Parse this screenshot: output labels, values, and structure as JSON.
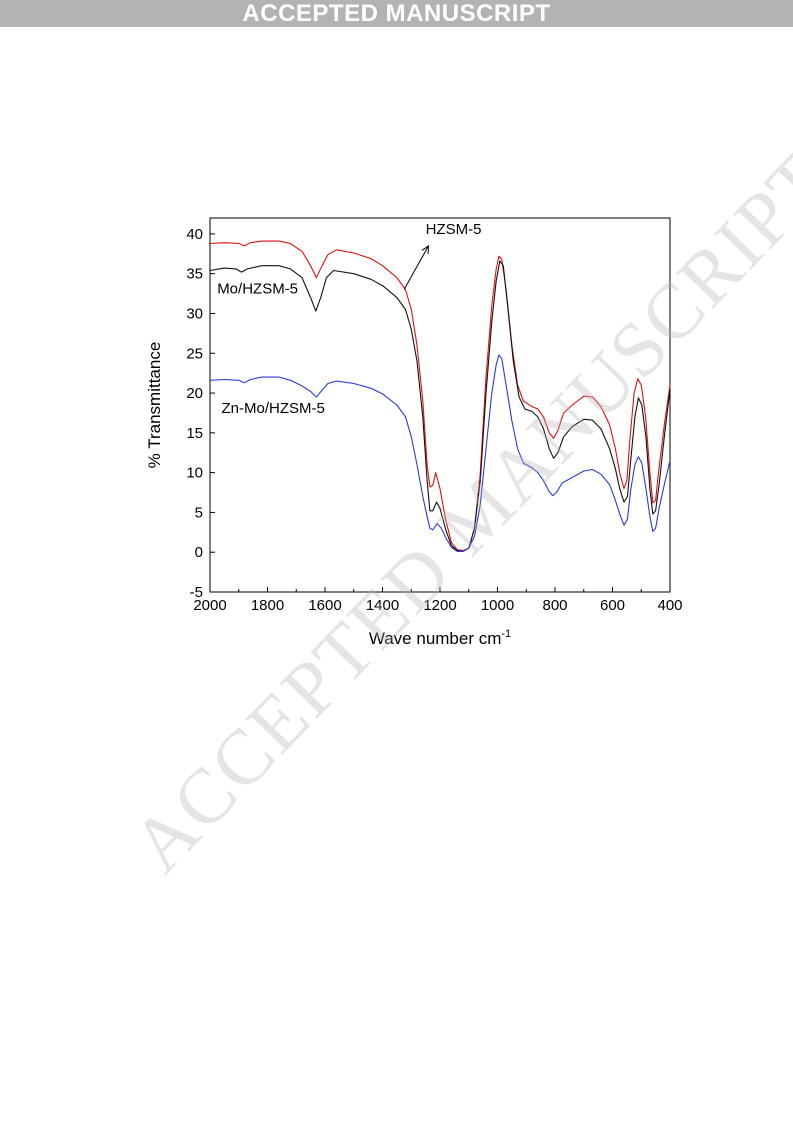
{
  "banner": {
    "text": "ACCEPTED MANUSCRIPT"
  },
  "watermark": {
    "text": "ACCEPTED MANUSCRIPT"
  },
  "chart_data": {
    "type": "line",
    "xlabel": "Wave number cm",
    "xlabel_sup": "-1",
    "ylabel": "% Transmittance",
    "xlim": [
      2000,
      400
    ],
    "ylim": [
      -5,
      42
    ],
    "x_ticks": [
      2000,
      1800,
      1600,
      1400,
      1200,
      1000,
      800,
      600,
      400
    ],
    "y_ticks": [
      -5,
      0,
      5,
      10,
      15,
      20,
      25,
      30,
      35,
      40
    ],
    "grid": false,
    "legend": "none",
    "annotations": [
      {
        "text": "HZSM-5",
        "x": 1250,
        "y": 40.0
      },
      {
        "text": "Mo/HZSM-5",
        "x": 1975,
        "y": 32.5
      },
      {
        "text": "Zn-Mo/HZSM-5",
        "x": 1960,
        "y": 17.5
      }
    ],
    "series": [
      {
        "name": "HZSM-5",
        "color": "#e01010",
        "points": [
          [
            2000,
            38.8
          ],
          [
            1950,
            38.9
          ],
          [
            1900,
            38.8
          ],
          [
            1880,
            38.5
          ],
          [
            1860,
            38.9
          ],
          [
            1820,
            39.1
          ],
          [
            1760,
            39.1
          ],
          [
            1720,
            38.8
          ],
          [
            1680,
            37.8
          ],
          [
            1650,
            36.0
          ],
          [
            1630,
            34.5
          ],
          [
            1610,
            36.0
          ],
          [
            1590,
            37.4
          ],
          [
            1560,
            38.0
          ],
          [
            1500,
            37.6
          ],
          [
            1440,
            36.9
          ],
          [
            1400,
            36.0
          ],
          [
            1350,
            34.5
          ],
          [
            1320,
            33.0
          ],
          [
            1300,
            30.5
          ],
          [
            1280,
            26.0
          ],
          [
            1260,
            19.0
          ],
          [
            1245,
            11.0
          ],
          [
            1235,
            8.2
          ],
          [
            1225,
            8.4
          ],
          [
            1215,
            10.0
          ],
          [
            1200,
            8.0
          ],
          [
            1180,
            4.0
          ],
          [
            1160,
            1.2
          ],
          [
            1140,
            0.3
          ],
          [
            1120,
            0.2
          ],
          [
            1100,
            0.5
          ],
          [
            1080,
            3.0
          ],
          [
            1060,
            10.0
          ],
          [
            1040,
            22.0
          ],
          [
            1020,
            31.0
          ],
          [
            1005,
            35.5
          ],
          [
            995,
            37.2
          ],
          [
            985,
            36.8
          ],
          [
            970,
            33.0
          ],
          [
            950,
            26.0
          ],
          [
            930,
            21.0
          ],
          [
            910,
            19.0
          ],
          [
            880,
            18.3
          ],
          [
            860,
            18.0
          ],
          [
            840,
            17.0
          ],
          [
            820,
            15.0
          ],
          [
            805,
            14.3
          ],
          [
            790,
            15.3
          ],
          [
            770,
            17.5
          ],
          [
            740,
            18.5
          ],
          [
            700,
            19.6
          ],
          [
            670,
            19.5
          ],
          [
            640,
            18.3
          ],
          [
            610,
            16.0
          ],
          [
            590,
            13.0
          ],
          [
            575,
            10.0
          ],
          [
            560,
            8.0
          ],
          [
            550,
            9.0
          ],
          [
            540,
            14.0
          ],
          [
            525,
            20.0
          ],
          [
            512,
            21.8
          ],
          [
            500,
            21.0
          ],
          [
            485,
            17.0
          ],
          [
            470,
            10.0
          ],
          [
            460,
            6.2
          ],
          [
            450,
            6.5
          ],
          [
            440,
            10.0
          ],
          [
            420,
            16.0
          ],
          [
            400,
            21.0
          ]
        ]
      },
      {
        "name": "Mo/HZSM-5",
        "color": "#111111",
        "points": [
          [
            2000,
            35.4
          ],
          [
            1950,
            35.7
          ],
          [
            1910,
            35.6
          ],
          [
            1890,
            35.2
          ],
          [
            1870,
            35.6
          ],
          [
            1820,
            36.0
          ],
          [
            1760,
            36.0
          ],
          [
            1720,
            35.6
          ],
          [
            1680,
            34.5
          ],
          [
            1650,
            32.0
          ],
          [
            1632,
            30.3
          ],
          [
            1615,
            32.0
          ],
          [
            1595,
            34.5
          ],
          [
            1570,
            35.4
          ],
          [
            1500,
            35.0
          ],
          [
            1440,
            34.3
          ],
          [
            1400,
            33.5
          ],
          [
            1350,
            32.0
          ],
          [
            1320,
            30.5
          ],
          [
            1300,
            28.0
          ],
          [
            1280,
            24.0
          ],
          [
            1260,
            17.0
          ],
          [
            1245,
            9.0
          ],
          [
            1235,
            5.2
          ],
          [
            1225,
            5.2
          ],
          [
            1212,
            6.3
          ],
          [
            1200,
            5.5
          ],
          [
            1180,
            2.8
          ],
          [
            1160,
            0.8
          ],
          [
            1140,
            0.2
          ],
          [
            1120,
            0.1
          ],
          [
            1100,
            0.5
          ],
          [
            1080,
            3.0
          ],
          [
            1060,
            9.0
          ],
          [
            1040,
            20.0
          ],
          [
            1020,
            29.0
          ],
          [
            1005,
            34.0
          ],
          [
            992,
            36.6
          ],
          [
            980,
            36.0
          ],
          [
            965,
            31.0
          ],
          [
            945,
            24.0
          ],
          [
            925,
            19.5
          ],
          [
            905,
            18.0
          ],
          [
            880,
            17.7
          ],
          [
            860,
            17.0
          ],
          [
            840,
            15.5
          ],
          [
            820,
            13.0
          ],
          [
            805,
            11.8
          ],
          [
            790,
            12.5
          ],
          [
            770,
            14.5
          ],
          [
            740,
            15.8
          ],
          [
            700,
            16.7
          ],
          [
            670,
            16.6
          ],
          [
            640,
            15.5
          ],
          [
            610,
            13.0
          ],
          [
            590,
            10.5
          ],
          [
            575,
            8.0
          ],
          [
            560,
            6.3
          ],
          [
            548,
            7.0
          ],
          [
            538,
            11.0
          ],
          [
            522,
            17.0
          ],
          [
            510,
            19.4
          ],
          [
            498,
            18.5
          ],
          [
            484,
            14.5
          ],
          [
            470,
            8.0
          ],
          [
            460,
            4.8
          ],
          [
            450,
            5.2
          ],
          [
            438,
            8.5
          ],
          [
            420,
            14.5
          ],
          [
            400,
            20.5
          ]
        ]
      },
      {
        "name": "Zn-Mo/HZSM-5",
        "color": "#2a3bd8",
        "points": [
          [
            2000,
            21.6
          ],
          [
            1950,
            21.7
          ],
          [
            1900,
            21.6
          ],
          [
            1880,
            21.3
          ],
          [
            1860,
            21.7
          ],
          [
            1820,
            22.0
          ],
          [
            1760,
            22.0
          ],
          [
            1720,
            21.6
          ],
          [
            1680,
            20.9
          ],
          [
            1650,
            20.2
          ],
          [
            1630,
            19.5
          ],
          [
            1612,
            20.3
          ],
          [
            1590,
            21.2
          ],
          [
            1560,
            21.5
          ],
          [
            1500,
            21.2
          ],
          [
            1440,
            20.6
          ],
          [
            1400,
            19.9
          ],
          [
            1350,
            18.5
          ],
          [
            1320,
            17.0
          ],
          [
            1300,
            14.5
          ],
          [
            1280,
            11.0
          ],
          [
            1260,
            7.0
          ],
          [
            1245,
            4.5
          ],
          [
            1235,
            3.0
          ],
          [
            1225,
            2.8
          ],
          [
            1210,
            3.6
          ],
          [
            1195,
            3.0
          ],
          [
            1180,
            1.8
          ],
          [
            1160,
            0.6
          ],
          [
            1140,
            0.1
          ],
          [
            1120,
            0.1
          ],
          [
            1100,
            0.5
          ],
          [
            1080,
            2.0
          ],
          [
            1060,
            6.0
          ],
          [
            1040,
            13.0
          ],
          [
            1020,
            20.0
          ],
          [
            1005,
            23.5
          ],
          [
            995,
            24.8
          ],
          [
            985,
            24.3
          ],
          [
            970,
            21.0
          ],
          [
            950,
            16.5
          ],
          [
            930,
            13.0
          ],
          [
            910,
            11.2
          ],
          [
            880,
            10.6
          ],
          [
            860,
            10.0
          ],
          [
            840,
            9.0
          ],
          [
            820,
            7.6
          ],
          [
            808,
            7.1
          ],
          [
            795,
            7.5
          ],
          [
            775,
            8.7
          ],
          [
            740,
            9.4
          ],
          [
            700,
            10.2
          ],
          [
            670,
            10.4
          ],
          [
            640,
            9.8
          ],
          [
            610,
            8.5
          ],
          [
            590,
            6.5
          ],
          [
            575,
            4.8
          ],
          [
            560,
            3.4
          ],
          [
            548,
            4.2
          ],
          [
            536,
            8.0
          ],
          [
            522,
            11.0
          ],
          [
            510,
            12.0
          ],
          [
            498,
            11.2
          ],
          [
            484,
            8.0
          ],
          [
            470,
            4.5
          ],
          [
            460,
            2.6
          ],
          [
            450,
            3.0
          ],
          [
            438,
            5.5
          ],
          [
            420,
            8.5
          ],
          [
            400,
            11.5
          ]
        ]
      }
    ]
  }
}
